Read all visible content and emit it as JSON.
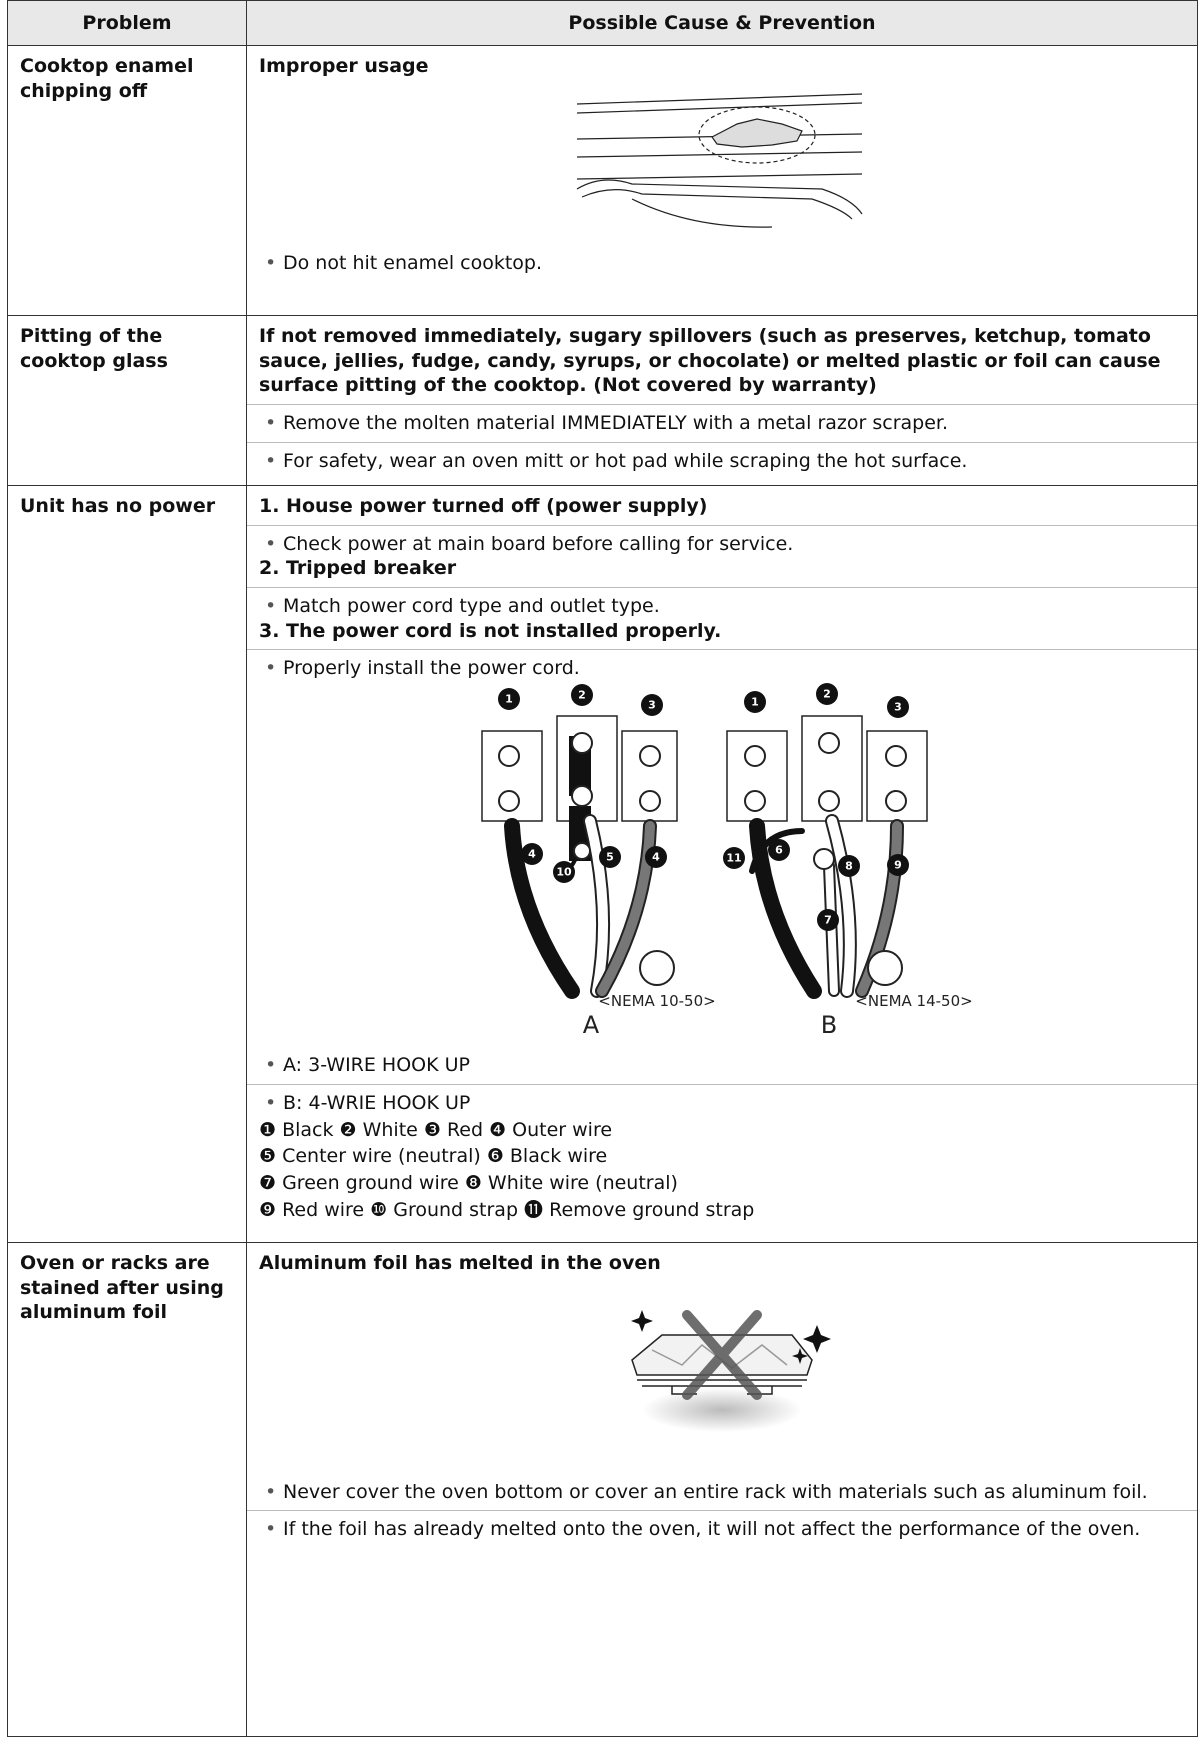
{
  "table": {
    "header": [
      "Problem",
      "Possible Cause & Prevention"
    ],
    "rows": [
      {
        "problem": "Cooktop enamel chipping off",
        "cause": "Improper usage",
        "bullets": [
          "Do not hit enamel cooktop."
        ]
      },
      {
        "problem": "Pitting of the cooktop glass",
        "cause": "If not removed immediately, sugary spillovers (such as preserves, ketchup, tomato sauce, jellies, fudge, candy, syrups, or chocolate) or melted plastic or foil can cause surface pitting of the cooktop. (Not covered by warranty)",
        "bullets": [
          "Remove the molten material IMMEDIATELY with a metal razor scraper.",
          "For safety, wear an oven mitt or hot pad while scraping the hot surface."
        ]
      },
      {
        "problem": "Unit has no power",
        "steps": [
          {
            "cause": "1. House power turned off (power supply)",
            "bullet": "Check power at main board before calling for service."
          },
          {
            "cause": "2. Tripped breaker",
            "bullet": "Match power cord type and outlet type."
          },
          {
            "cause": "3. The power cord is not installed properly.",
            "bullet": "Properly install the power cord."
          }
        ],
        "diagram": {
          "callouts_a": [
            "1",
            "2",
            "3",
            "4",
            "10",
            "5",
            "4"
          ],
          "callouts_b": [
            "1",
            "2",
            "3",
            "11",
            "6",
            "8",
            "7",
            "9"
          ],
          "outlet_a": "<NEMA 10-50>",
          "label_a": "A",
          "outlet_b": "<NEMA 14-50>",
          "label_b": "B"
        },
        "bullets": [
          "A: 3-WIRE HOOK UP",
          "B: 4-WRIE HOOK UP"
        ],
        "legend": [
          "❶ Black ❷ White ❸ Red ❹ Outer wire",
          "❺ Center wire (neutral) ❻ Black wire",
          "❼ Green ground wire ❽ White wire (neutral)",
          "❾ Red wire ❿ Ground strap ⓫ Remove ground strap"
        ]
      },
      {
        "problem": "Oven or racks are stained after using aluminum foil",
        "cause": "Aluminum foil has melted in the oven",
        "bullets": [
          "Never cover the oven bottom or cover an entire rack with materials such as aluminum foil.",
          "If the foil has already melted onto the oven, it will not affect the performance of the oven."
        ]
      }
    ]
  }
}
